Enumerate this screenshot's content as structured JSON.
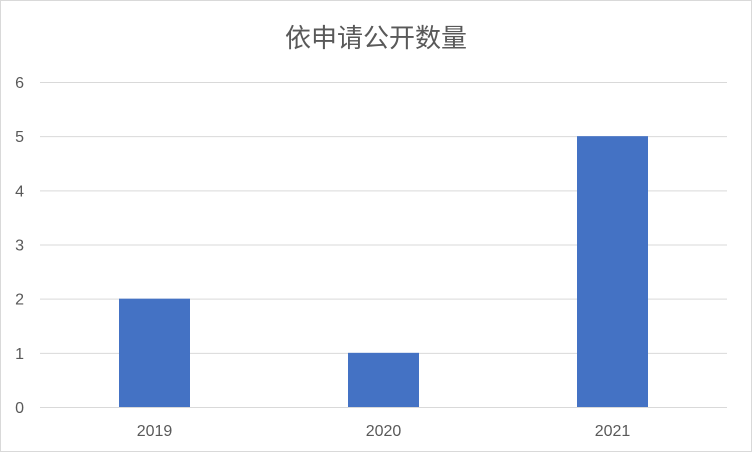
{
  "chart_data": {
    "type": "bar",
    "title": "依申请公开数量",
    "categories": [
      "2019",
      "2020",
      "2021"
    ],
    "values": [
      2,
      1,
      5
    ],
    "ylim": [
      0,
      6
    ],
    "yticks": [
      0,
      1,
      2,
      3,
      4,
      5,
      6
    ],
    "xlabel": "",
    "ylabel": "",
    "grid": true,
    "legend": "none",
    "colors": {
      "bar": "#4472C4",
      "grid": "#d9d9d9",
      "text": "#595959"
    }
  }
}
